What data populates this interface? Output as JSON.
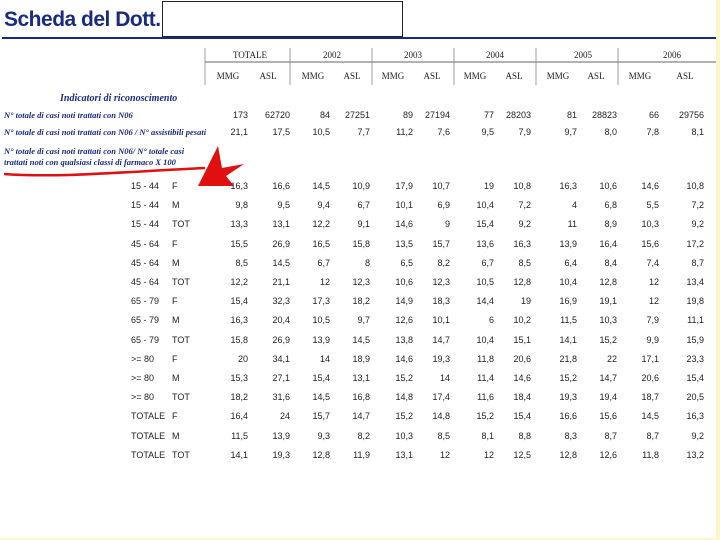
{
  "header": {
    "title": "Scheda del Dott."
  },
  "table": {
    "years": [
      "TOTALE",
      "2002",
      "2003",
      "2004",
      "2005",
      "2006"
    ],
    "subheaders": [
      "MMG",
      "ASL"
    ],
    "section": "Indicatori di riconoscimento",
    "indicators": [
      {
        "label": "N° totale di casi noti trattati con N06",
        "values": [
          "173",
          "62720",
          "84",
          "27251",
          "89",
          "27194",
          "77",
          "28203",
          "81",
          "28823",
          "66",
          "29756"
        ]
      },
      {
        "label": "N° totale di casi noti trattati con N06 / N° assistibili pesati",
        "values": [
          "21,1",
          "17,5",
          "10,5",
          "7,7",
          "11,2",
          "7,6",
          "9,5",
          "7,9",
          "9,7",
          "8,0",
          "7,8",
          "8,1"
        ]
      },
      {
        "label": "N° totale di casi noti trattati con N06/ N° totale casi trattati noti con qualsiasi classi di farmaco X 100"
      }
    ],
    "rows": [
      {
        "age": "15 - 44",
        "sex": "F",
        "values": [
          "16,3",
          "16,6",
          "14,5",
          "10,9",
          "17,9",
          "10,7",
          "19",
          "10,8",
          "16,3",
          "10,6",
          "14,6",
          "10,8"
        ]
      },
      {
        "age": "15 - 44",
        "sex": "M",
        "values": [
          "9,8",
          "9,5",
          "9,4",
          "6,7",
          "10,1",
          "6,9",
          "10,4",
          "7,2",
          "4",
          "6,8",
          "5,5",
          "7,2"
        ]
      },
      {
        "age": "15 - 44",
        "sex": "TOT",
        "values": [
          "13,3",
          "13,1",
          "12,2",
          "9,1",
          "14,6",
          "9",
          "15,4",
          "9,2",
          "11",
          "8,9",
          "10,3",
          "9,2"
        ]
      },
      {
        "age": "45 - 64",
        "sex": "F",
        "values": [
          "15,5",
          "26,9",
          "16,5",
          "15,8",
          "13,5",
          "15,7",
          "13,6",
          "16,3",
          "13,9",
          "16,4",
          "15,6",
          "17,2"
        ]
      },
      {
        "age": "45 - 64",
        "sex": "M",
        "values": [
          "8,5",
          "14,5",
          "6,7",
          "8",
          "6,5",
          "8,2",
          "6,7",
          "8,5",
          "6,4",
          "8,4",
          "7,4",
          "8,7"
        ]
      },
      {
        "age": "45 - 64",
        "sex": "TOT",
        "values": [
          "12,2",
          "21,1",
          "12",
          "12,3",
          "10,6",
          "12,3",
          "10,5",
          "12,8",
          "10,4",
          "12,8",
          "12",
          "13,4"
        ]
      },
      {
        "age": "65 - 79",
        "sex": "F",
        "values": [
          "15,4",
          "32,3",
          "17,3",
          "18,2",
          "14,9",
          "18,3",
          "14,4",
          "19",
          "16,9",
          "19,1",
          "12",
          "19,8"
        ]
      },
      {
        "age": "65 - 79",
        "sex": "M",
        "values": [
          "16,3",
          "20,4",
          "10,5",
          "9,7",
          "12,6",
          "10,1",
          "6",
          "10,2",
          "11,5",
          "10,3",
          "7,9",
          "11,1"
        ]
      },
      {
        "age": "65 - 79",
        "sex": "TOT",
        "values": [
          "15,8",
          "26,9",
          "13,9",
          "14,5",
          "13,8",
          "14,7",
          "10,4",
          "15,1",
          "14,1",
          "15,2",
          "9,9",
          "15,9"
        ]
      },
      {
        "age": ">= 80",
        "sex": "F",
        "values": [
          "20",
          "34,1",
          "14",
          "18,9",
          "14,6",
          "19,3",
          "11,8",
          "20,6",
          "21,8",
          "22",
          "17,1",
          "23,3"
        ]
      },
      {
        "age": ">= 80",
        "sex": "M",
        "values": [
          "15,3",
          "27,1",
          "15,4",
          "13,1",
          "15,2",
          "14",
          "11,4",
          "14,6",
          "15,2",
          "14,7",
          "20,6",
          "15,4"
        ]
      },
      {
        "age": ">= 80",
        "sex": "TOT",
        "values": [
          "18,2",
          "31,6",
          "14,5",
          "16,8",
          "14,8",
          "17,4",
          "11,6",
          "18,4",
          "19,3",
          "19,4",
          "18,7",
          "20,5"
        ]
      },
      {
        "age": "TOTALE",
        "sex": "F",
        "values": [
          "16,4",
          "24",
          "15,7",
          "14,7",
          "15,2",
          "14,8",
          "15,2",
          "15,4",
          "16,6",
          "15,6",
          "14,5",
          "16,3"
        ]
      },
      {
        "age": "TOTALE",
        "sex": "M",
        "values": [
          "11,5",
          "13,9",
          "9,3",
          "8,2",
          "10,3",
          "8,5",
          "8,1",
          "8,8",
          "8,3",
          "8,7",
          "8,7",
          "9,2"
        ]
      },
      {
        "age": "TOTALE",
        "sex": "TOT",
        "values": [
          "14,1",
          "19,3",
          "12,8",
          "11,9",
          "13,1",
          "12",
          "12",
          "12,5",
          "12,8",
          "12,6",
          "11,8",
          "13,2"
        ]
      }
    ]
  }
}
